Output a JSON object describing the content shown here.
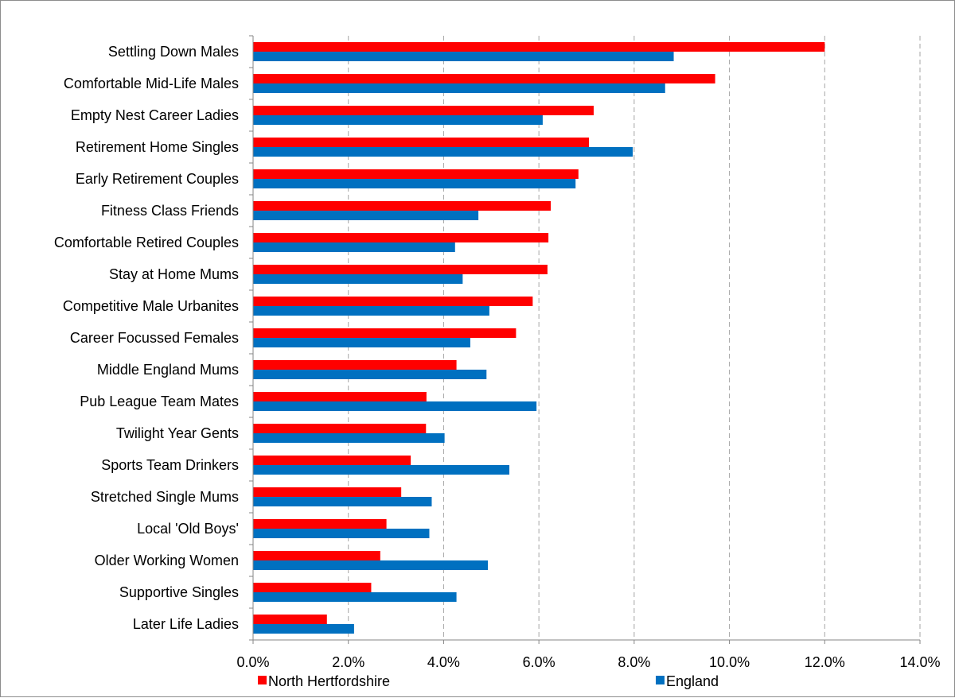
{
  "chart_data": {
    "type": "bar",
    "orientation": "horizontal",
    "title": "",
    "xlabel": "",
    "ylabel": "",
    "categories": [
      "Settling Down Males",
      "Comfortable Mid-Life Males",
      "Empty Nest Career Ladies",
      "Retirement Home Singles",
      "Early Retirement Couples",
      "Fitness Class Friends",
      "Comfortable Retired Couples",
      "Stay at Home Mums",
      "Competitive Male Urbanites",
      "Career Focussed Females",
      "Middle England Mums",
      "Pub League Team Mates",
      "Twilight Year Gents",
      "Sports Team Drinkers",
      "Stretched Single Mums",
      "Local 'Old Boys'",
      "Older Working Women",
      "Supportive Singles",
      "Later Life Ladies"
    ],
    "series": [
      {
        "name": "North Hertfordshire",
        "color": "#ff0000",
        "values": [
          12.0,
          9.7,
          7.15,
          7.05,
          6.83,
          6.25,
          6.2,
          6.18,
          5.87,
          5.52,
          4.27,
          3.64,
          3.63,
          3.31,
          3.11,
          2.8,
          2.67,
          2.48,
          1.55
        ]
      },
      {
        "name": "England",
        "color": "#0070c0",
        "values": [
          8.83,
          8.65,
          6.08,
          7.97,
          6.77,
          4.73,
          4.24,
          4.4,
          4.96,
          4.56,
          4.9,
          5.95,
          4.02,
          5.38,
          3.75,
          3.7,
          4.93,
          4.27,
          2.12
        ]
      }
    ],
    "xlim": [
      0,
      14
    ],
    "x_ticks": [
      0,
      2,
      4,
      6,
      8,
      10,
      12,
      14
    ],
    "x_tick_labels": [
      "0.0%",
      "2.0%",
      "4.0%",
      "6.0%",
      "8.0%",
      "10.0%",
      "12.0%",
      "14.0%"
    ],
    "grid": "vertical dashed",
    "legend_position": "bottom"
  }
}
